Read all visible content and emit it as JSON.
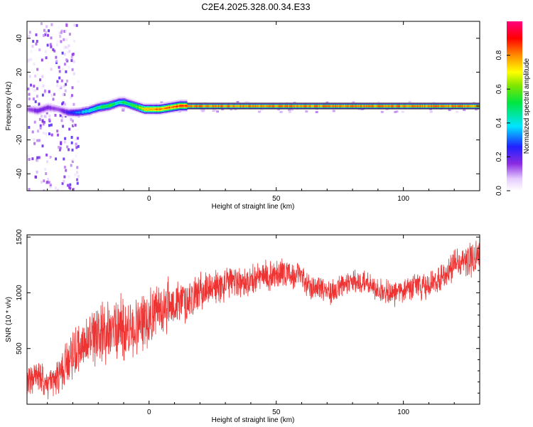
{
  "title": "C2E4.2025.328.00.34.E33",
  "colors": {
    "trace": "#ee3333",
    "axis": "#000000",
    "background": "#ffffff"
  },
  "chart_data": [
    {
      "type": "heatmap",
      "xlabel": "Height of straight line (km)",
      "ylabel": "Frequency (Hz)",
      "xlim": [
        -48,
        130
      ],
      "ylim": [
        -50,
        50
      ],
      "x_ticks": [
        0,
        50,
        100
      ],
      "y_ticks": [
        -40,
        -20,
        0,
        20,
        40
      ],
      "colorbar": {
        "label": "Normalized spectral amplitude",
        "range": [
          0,
          1
        ],
        "ticks": [
          "0.0",
          "0.2",
          "0.4",
          "0.6",
          "0.8"
        ],
        "colormap": "rainbow (white-violet-blue-cyan-green-yellow-red-magenta)"
      },
      "ridge": {
        "x": [
          -48,
          -44,
          -40,
          -36,
          -32,
          -28,
          -24,
          -20,
          -16,
          -12,
          -10,
          -8,
          -6,
          -4,
          -2,
          0,
          4,
          8,
          12,
          20,
          40,
          60,
          80,
          100,
          120,
          130
        ],
        "frequency": [
          -2,
          -3,
          -1,
          -2,
          -4,
          -4,
          -3,
          -1,
          0,
          2,
          2,
          1,
          0,
          -1,
          -2,
          -2,
          -2,
          -1,
          0,
          0,
          0,
          0,
          0,
          0,
          0,
          0
        ],
        "amplitude": [
          0.15,
          0.2,
          0.2,
          0.15,
          0.25,
          0.35,
          0.45,
          0.55,
          0.6,
          0.5,
          0.6,
          0.55,
          0.6,
          0.7,
          0.8,
          0.85,
          0.9,
          0.9,
          0.95,
          0.95,
          0.95,
          0.95,
          0.95,
          0.95,
          0.95,
          0.95
        ]
      },
      "grid": false
    },
    {
      "type": "line",
      "xlabel": "Height of straight line (km)",
      "ylabel": "SNR (10 * v/v)",
      "xlim": [
        -48,
        130
      ],
      "ylim": [
        0,
        1520
      ],
      "x_ticks": [
        0,
        50,
        100
      ],
      "y_ticks": [
        500,
        1000,
        1500
      ],
      "series": [
        {
          "x": [
            -48,
            -44,
            -40,
            -36,
            -32,
            -28,
            -24,
            -20,
            -16,
            -12,
            -8,
            -4,
            0,
            4,
            8,
            12,
            16,
            20,
            24,
            28,
            32,
            36,
            40,
            44,
            48,
            52,
            56,
            60,
            64,
            68,
            72,
            76,
            80,
            84,
            88,
            92,
            96,
            100,
            104,
            108,
            112,
            116,
            120,
            124,
            128,
            130
          ],
          "values": [
            200,
            250,
            180,
            220,
            400,
            500,
            550,
            600,
            650,
            700,
            650,
            700,
            800,
            850,
            900,
            900,
            950,
            1000,
            1050,
            1050,
            1100,
            1100,
            1100,
            1150,
            1150,
            1200,
            1150,
            1150,
            1050,
            1050,
            1000,
            1050,
            1100,
            1100,
            1050,
            1000,
            1000,
            1000,
            1050,
            1050,
            1100,
            1150,
            1250,
            1300,
            1300,
            1350
          ],
          "noise_amplitude": [
            120,
            150,
            120,
            150,
            200,
            220,
            250,
            250,
            280,
            300,
            280,
            250,
            250,
            230,
            220,
            200,
            180,
            160,
            150,
            150,
            140,
            130,
            130,
            130,
            130,
            130,
            120,
            120,
            110,
            110,
            110,
            110,
            110,
            110,
            110,
            110,
            110,
            110,
            110,
            120,
            120,
            130,
            140,
            140,
            140,
            140
          ]
        }
      ],
      "grid": false
    }
  ]
}
